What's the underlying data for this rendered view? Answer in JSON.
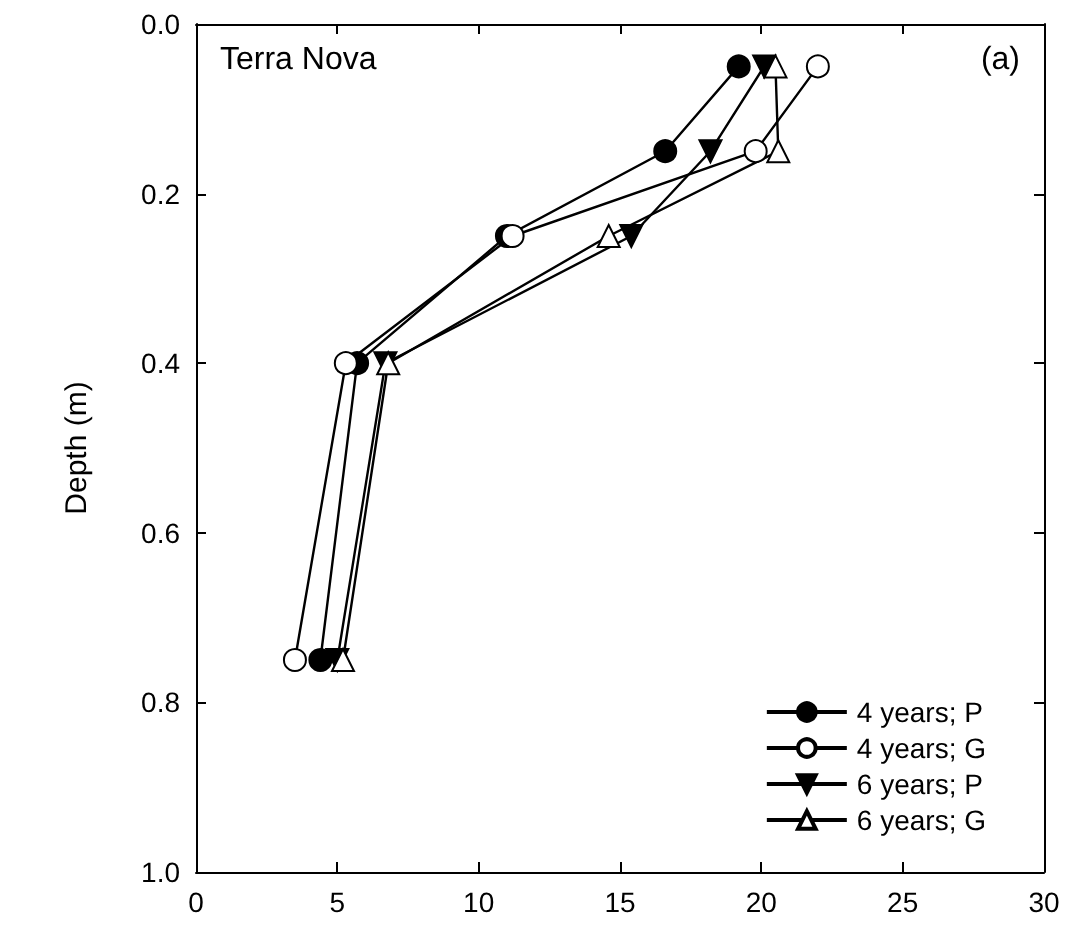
{
  "chart_data": {
    "type": "line",
    "ylabel": "Depth (m)",
    "annotations": [
      "Terra Nova",
      "(a)"
    ],
    "xlim": [
      0,
      30
    ],
    "xticks": [
      0,
      5,
      10,
      15,
      20,
      25,
      30
    ],
    "ylim": [
      1.0,
      0.0
    ],
    "yticks": [
      {
        "value": 0,
        "label": "0.0"
      },
      {
        "value": 0.2,
        "label": "0.2"
      },
      {
        "value": 0.4,
        "label": "0.4"
      },
      {
        "value": 0.6,
        "label": "0.6"
      },
      {
        "value": 0.8,
        "label": "0.8"
      },
      {
        "value": 1,
        "label": "1.0"
      }
    ],
    "grid": false,
    "legend": "bottom right",
    "line_style": "solid",
    "series": [
      {
        "name": "4 years; P",
        "color": "#000000",
        "marker": "circle",
        "x": [
          19.2,
          16.6,
          11.0,
          5.7,
          4.4
        ],
        "values": [
          0.05,
          0.15,
          0.25,
          0.4,
          0.75
        ]
      },
      {
        "name": "4 years; G",
        "color": "#ffffff",
        "marker": "circle",
        "x": [
          22.0,
          19.8,
          11.2,
          5.3,
          3.5
        ],
        "values": [
          0.05,
          0.15,
          0.25,
          0.4,
          0.75
        ]
      },
      {
        "name": "6 years; P",
        "color": "#000000",
        "marker": "triangle_down",
        "x": [
          20.1,
          18.2,
          15.4,
          6.7,
          5.0
        ],
        "values": [
          0.05,
          0.15,
          0.25,
          0.4,
          0.75
        ]
      },
      {
        "name": "6 years; G",
        "color": "#ffffff",
        "marker": "triangle",
        "x": [
          20.5,
          20.6,
          14.6,
          6.8,
          5.2
        ],
        "values": [
          0.05,
          0.15,
          0.25,
          0.4,
          0.75
        ]
      }
    ]
  }
}
